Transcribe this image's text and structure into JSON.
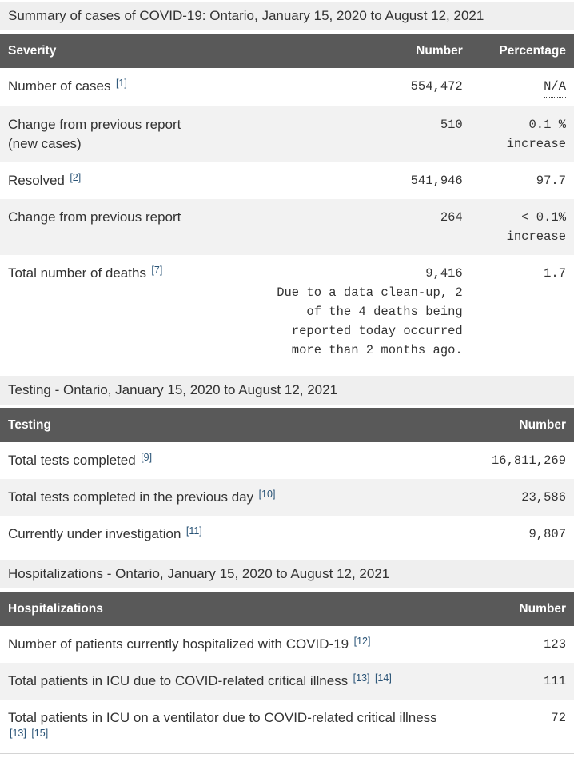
{
  "colors": {
    "header_bg": "#595959",
    "header_text": "#ffffff",
    "caption_bg": "#efefef",
    "stripe_bg": "#f2f2f2",
    "link_blue": "#295376",
    "body_text": "#333333"
  },
  "captions": {
    "summary": "Summary of cases of COVID-19: Ontario, January 15, 2020 to August 12, 2021",
    "testing": "Testing - Ontario, January 15, 2020 to August 12, 2021",
    "hospitalizations": "Hospitalizations - Ontario, January 15, 2020 to August 12, 2021"
  },
  "severity_table": {
    "headers": [
      "Severity",
      "Number",
      "Percentage"
    ],
    "rows": [
      {
        "label": "Number of cases",
        "footnotes": [
          "[1]"
        ],
        "number": "554,472",
        "percentage": "N/A",
        "abbr": true,
        "shaded": false
      },
      {
        "label": "Change from previous report\n(new cases)",
        "footnotes": [],
        "number": "510",
        "percentage": "0.1 %\nincrease",
        "abbr": false,
        "shaded": true
      },
      {
        "label": "Resolved",
        "footnotes": [
          "[2]"
        ],
        "number": "541,946",
        "percentage": "97.7",
        "abbr": false,
        "shaded": false
      },
      {
        "label": "Change from previous report",
        "footnotes": [],
        "number": "264",
        "percentage": "< 0.1%\nincrease",
        "abbr": false,
        "shaded": true
      },
      {
        "label": "Total number of deaths",
        "footnotes": [
          "[7]"
        ],
        "number": "9,416",
        "note": "Due to a data clean-up, 2\nof the 4 deaths being\nreported today occurred\nmore than 2 months ago.",
        "percentage": "1.7",
        "abbr": false,
        "shaded": false
      }
    ]
  },
  "testing_table": {
    "headers": [
      "Testing",
      "Number"
    ],
    "rows": [
      {
        "label": "Total tests completed",
        "footnotes": [
          "[9]"
        ],
        "number": "16,811,269",
        "shaded": false
      },
      {
        "label": "Total tests completed in the previous day",
        "footnotes": [
          "[10]"
        ],
        "number": "23,586",
        "shaded": true
      },
      {
        "label": "Currently under investigation",
        "footnotes": [
          "[11]"
        ],
        "number": "9,807",
        "shaded": false
      }
    ]
  },
  "hospitalizations_table": {
    "headers": [
      "Hospitalizations",
      "Number"
    ],
    "rows": [
      {
        "label": "Number of patients currently hospitalized with COVID-19",
        "footnotes": [
          "[12]"
        ],
        "number": "123",
        "shaded": false
      },
      {
        "label": "Total patients in ICU due to COVID-related critical illness",
        "footnotes": [
          "[13]",
          "[14]"
        ],
        "number": "111",
        "shaded": true
      },
      {
        "label": "Total patients in ICU on a ventilator due to COVID-related critical illness",
        "footnotes": [
          "[13]",
          "[15]"
        ],
        "number": "72",
        "shaded": false
      }
    ]
  }
}
